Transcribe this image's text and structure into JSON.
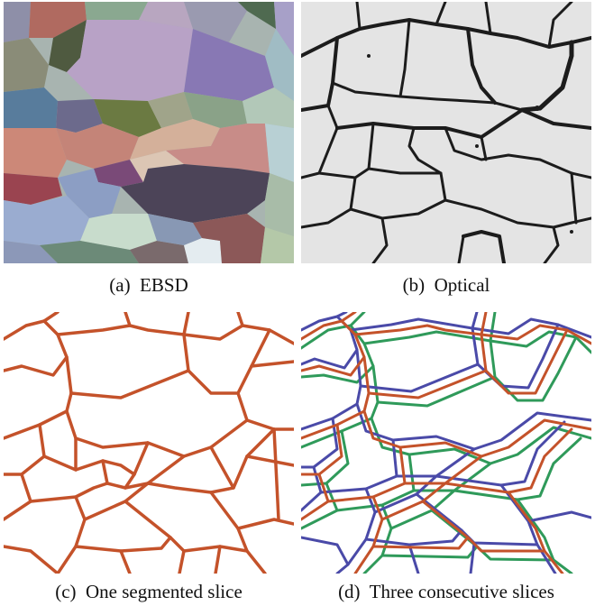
{
  "captions": {
    "a": "(a)  EBSD",
    "b": "(b)  Optical",
    "c": "(c)  One segmented slice",
    "d": "(d)  Three consecutive slices"
  },
  "colors": {
    "boundary_orange": "#c4522a",
    "boundary_blue": "#4a4aa8",
    "boundary_green": "#2f9a5a",
    "optical_bg": "#e6e6e6",
    "optical_line": "#1c1c1c"
  }
}
